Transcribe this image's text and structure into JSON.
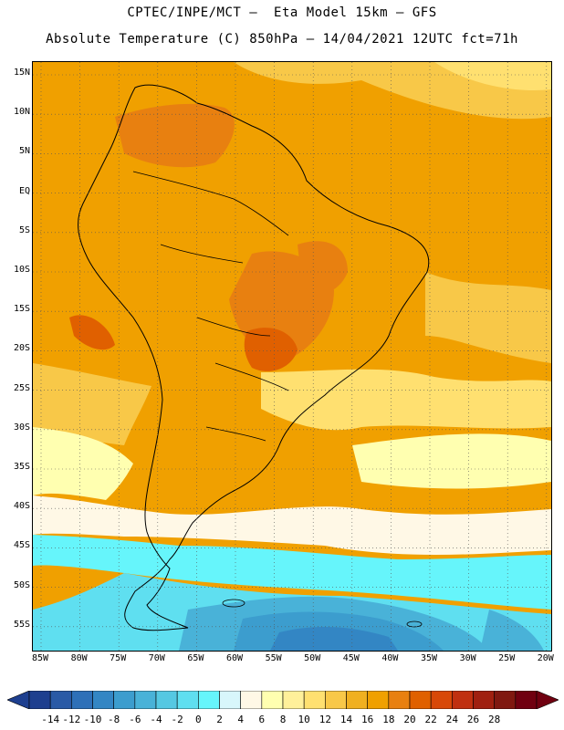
{
  "title_line1": "CPTEC/INPE/MCT –  Eta Model 15km – GFS",
  "title_line2": "Absolute Temperature (C) 850hPa – 14/04/2021 12UTC fct=71h",
  "lat_labels": [
    "15N",
    "10N",
    "5N",
    "EQ",
    "5S",
    "10S",
    "15S",
    "20S",
    "25S",
    "30S",
    "35S",
    "40S",
    "45S",
    "50S",
    "55S"
  ],
  "lon_labels": [
    "85W",
    "80W",
    "75W",
    "70W",
    "65W",
    "60W",
    "55W",
    "50W",
    "45W",
    "40W",
    "35W",
    "30W",
    "25W",
    "20W"
  ],
  "colorbar": {
    "ticks": [
      "-14",
      "-12",
      "-10",
      "-8",
      "-6",
      "-4",
      "-2",
      "0",
      "2",
      "4",
      "6",
      "8",
      "10",
      "12",
      "14",
      "16",
      "18",
      "20",
      "22",
      "24",
      "26",
      "28"
    ],
    "colors": [
      "#1e3f8f",
      "#2a5aa6",
      "#2e70b8",
      "#3386c4",
      "#3c9dce",
      "#49b2d8",
      "#55c8e2",
      "#5fdff0",
      "#66f5fb",
      "#d8f6fb",
      "#fff8e6",
      "#ffffb0",
      "#fff09a",
      "#ffe070",
      "#f8c848",
      "#f0b020",
      "#f0a000",
      "#e88010",
      "#e06000",
      "#d84808",
      "#c03010",
      "#a02010",
      "#801810",
      "#700010"
    ],
    "left_arrow_color": "#1e3f8f",
    "right_arrow_color": "#700010"
  },
  "map": {
    "region": "South America",
    "variable": "Absolute Temperature 850hPa",
    "ocean_base_color": "#f0a000",
    "warm_core_color": "#e06000",
    "cold_south_color": "#3386c4"
  }
}
